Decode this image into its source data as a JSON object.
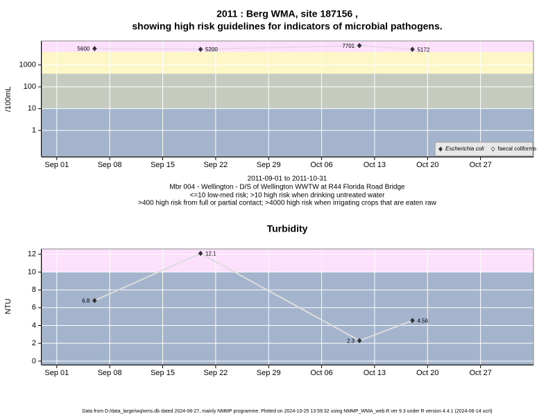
{
  "chart_data": [
    {
      "type": "line",
      "title": [
        "2011 : Berg WMA, site 187156 ,",
        "showing high risk guidelines for indicators of microbial pathogens."
      ],
      "subtitle": [
        "2011-09-01 to 2011-10-31",
        "Mbr 004 - Wellington - D/S of Wellington WWTW at R44 Florida Road Bridge",
        "<=10 low-med risk; >10 high risk when drinking untreated water",
        ">400 high risk from full or partial contact; >4000 high risk when irrigating crops that are eaten raw"
      ],
      "y_label": "/100mL",
      "log_y": true,
      "x": [
        "2011-09-06",
        "2011-09-20",
        "2011-10-11",
        "2011-10-18"
      ],
      "series": [
        {
          "name": "Escherichia coli",
          "color": "#333333",
          "line_color": "#ead8ea",
          "values": [
            5600,
            5200,
            7701,
            5172
          ]
        },
        {
          "name": "faecal coliforms",
          "color": "#ffffff",
          "line_color": "#ead8ea",
          "values": [
            null,
            null,
            null,
            null
          ]
        }
      ],
      "xlim": [
        "2011-08-30",
        "2011-11-03"
      ],
      "xticks": [
        {
          "value": "2011-09-01",
          "label": "Sep 01"
        },
        {
          "value": "2011-09-08",
          "label": "Sep 08"
        },
        {
          "value": "2011-09-15",
          "label": "Sep 15"
        },
        {
          "value": "2011-09-22",
          "label": "Sep 22"
        },
        {
          "value": "2011-09-29",
          "label": "Sep 29"
        },
        {
          "value": "2011-10-06",
          "label": "Oct 06"
        },
        {
          "value": "2011-10-13",
          "label": "Oct 13"
        },
        {
          "value": "2011-10-20",
          "label": "Oct 20"
        },
        {
          "value": "2011-10-27",
          "label": "Oct 27"
        }
      ],
      "ylim": [
        0.063,
        12600
      ],
      "yticks": [
        1,
        10,
        100,
        1000
      ],
      "bands": [
        {
          "from": 0.063,
          "to": 10,
          "color": "#a3b4cc"
        },
        {
          "from": 10,
          "to": 400,
          "color": "#c5cbbf"
        },
        {
          "from": 400,
          "to": 4000,
          "color": "#fdf7c8"
        },
        {
          "from": 4000,
          "to": 12600,
          "color": "#fce0fc"
        }
      ],
      "grid": true,
      "legend": "bottom-right"
    },
    {
      "type": "line",
      "title": "Turbidity",
      "y_label": "NTU",
      "log_y": false,
      "x": [
        "2011-09-06",
        "2011-09-20",
        "2011-10-11",
        "2011-10-18"
      ],
      "series": [
        {
          "color": "#333333",
          "line_color": "#dcdcdc",
          "values": [
            6.8,
            12.1,
            2.3,
            4.56
          ]
        }
      ],
      "xlim": [
        "2011-08-30",
        "2011-11-03"
      ],
      "xticks": [
        {
          "value": "2011-09-01",
          "label": "Sep 01"
        },
        {
          "value": "2011-09-08",
          "label": "Sep 08"
        },
        {
          "value": "2011-09-15",
          "label": "Sep 15"
        },
        {
          "value": "2011-09-22",
          "label": "Sep 22"
        },
        {
          "value": "2011-09-29",
          "label": "Sep 29"
        },
        {
          "value": "2011-10-06",
          "label": "Oct 06"
        },
        {
          "value": "2011-10-13",
          "label": "Oct 13"
        },
        {
          "value": "2011-10-20",
          "label": "Oct 20"
        },
        {
          "value": "2011-10-27",
          "label": "Oct 27"
        }
      ],
      "ylim": [
        -0.4,
        12.6
      ],
      "yticks": [
        0,
        2,
        4,
        6,
        8,
        10,
        12
      ],
      "bands": [
        {
          "from": -0.4,
          "to": 10,
          "color": "#a3b4cc"
        },
        {
          "from": 10,
          "to": 12.6,
          "color": "#fce0fc"
        }
      ],
      "grid": true
    }
  ],
  "footer": "Data from D:/data_large/wq/wms.db dated 2024-08-27, mainly NMMP programme. Plotted on 2024-10-25 13:59:32 using NMMP_WMA_web.R ver 9.3 under R version 4.4.1 (2024-06-14 ucrt)"
}
